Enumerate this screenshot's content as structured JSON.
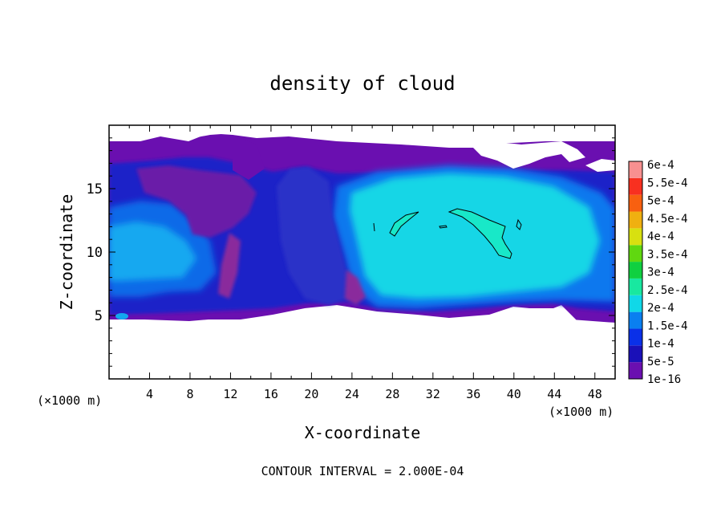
{
  "chart_data": {
    "type": "heatmap",
    "title": "density of cloud",
    "xlabel": "X-coordinate",
    "ylabel": "Z-coordinate",
    "x_unit": "(×1000 m)",
    "z_unit": "(×1000 m)",
    "x_ticks": [
      4,
      8,
      12,
      16,
      20,
      24,
      28,
      32,
      36,
      40,
      44,
      48
    ],
    "y_ticks": [
      5,
      10,
      15
    ],
    "xlim": [
      0,
      50
    ],
    "ylim": [
      0,
      20
    ],
    "footer": "CONTOUR INTERVAL = 2.000E-04",
    "colorbar": {
      "labels": [
        "1e-16",
        "5e-5",
        "1e-4",
        "1.5e-4",
        "2e-4",
        "2.5e-4",
        "3e-4",
        "3.5e-4",
        "4e-4",
        "4.5e-4",
        "5e-4",
        "5.5e-4",
        "6e-4"
      ],
      "colors": [
        "#6a0fb0",
        "#1a10b8",
        "#0a30e8",
        "#0a7ff0",
        "#10d8e8",
        "#18e8a0",
        "#10d040",
        "#60d810",
        "#d8e010",
        "#f0b010",
        "#f86010",
        "#f83020",
        "#f89090"
      ]
    },
    "cloud_layer": {
      "base_z": 5,
      "top_z": 18.5,
      "core_density": "1.5e-4 to 2e-4",
      "core_x_range": [
        24,
        48
      ],
      "core_z_range": [
        7,
        15.5
      ]
    },
    "contour_regions": [
      {
        "x": [
          27.5,
          31
        ],
        "z": [
          11,
          13
        ]
      },
      {
        "x": [
          33.5,
          40
        ],
        "z": [
          9.8,
          13.5
        ]
      },
      {
        "x": [
          40.3,
          40.6
        ],
        "z": [
          12,
          12.5
        ]
      },
      {
        "x": [
          32.8,
          33.5
        ],
        "z": [
          12,
          12.3
        ]
      }
    ]
  }
}
